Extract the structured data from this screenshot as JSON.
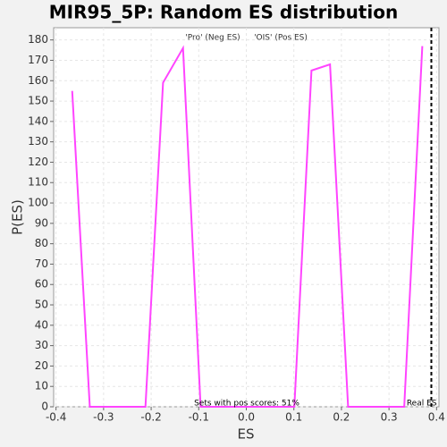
{
  "chart_data": {
    "type": "line",
    "title": "MIR95_5P: Random ES distribution",
    "xlabel": "ES",
    "ylabel": "P(ES)",
    "x": [
      -0.366,
      -0.329,
      -0.212,
      -0.175,
      -0.133,
      -0.096,
      0.101,
      0.137,
      0.176,
      0.214,
      0.332,
      0.37
    ],
    "series": [
      {
        "name": null,
        "color": "#ff44ff",
        "values": [
          155,
          0,
          0,
          159,
          176,
          0,
          0,
          165,
          168,
          0,
          0,
          177
        ]
      }
    ],
    "xlim": [
      -0.405,
      0.405
    ],
    "ylim": [
      0,
      186
    ],
    "xticks": [
      -0.4,
      -0.3,
      -0.2,
      -0.1,
      {
        "value": 0,
        "label": "0.0"
      },
      0.1,
      0.2,
      0.3,
      0.4
    ],
    "yticks": [
      0,
      10,
      20,
      30,
      40,
      50,
      60,
      70,
      80,
      90,
      100,
      110,
      120,
      130,
      140,
      150,
      160,
      170,
      180
    ],
    "grid": true,
    "legend": [
      {
        "label": "'Pro' (Neg ES)",
        "color": "#2222cc"
      },
      {
        "label": "'OIS' (Pos ES)",
        "color": "#dd2222"
      }
    ],
    "real_es": {
      "label": "Real ES",
      "value": 0.389
    },
    "annotation": "Sets with pos scores: 51%"
  }
}
